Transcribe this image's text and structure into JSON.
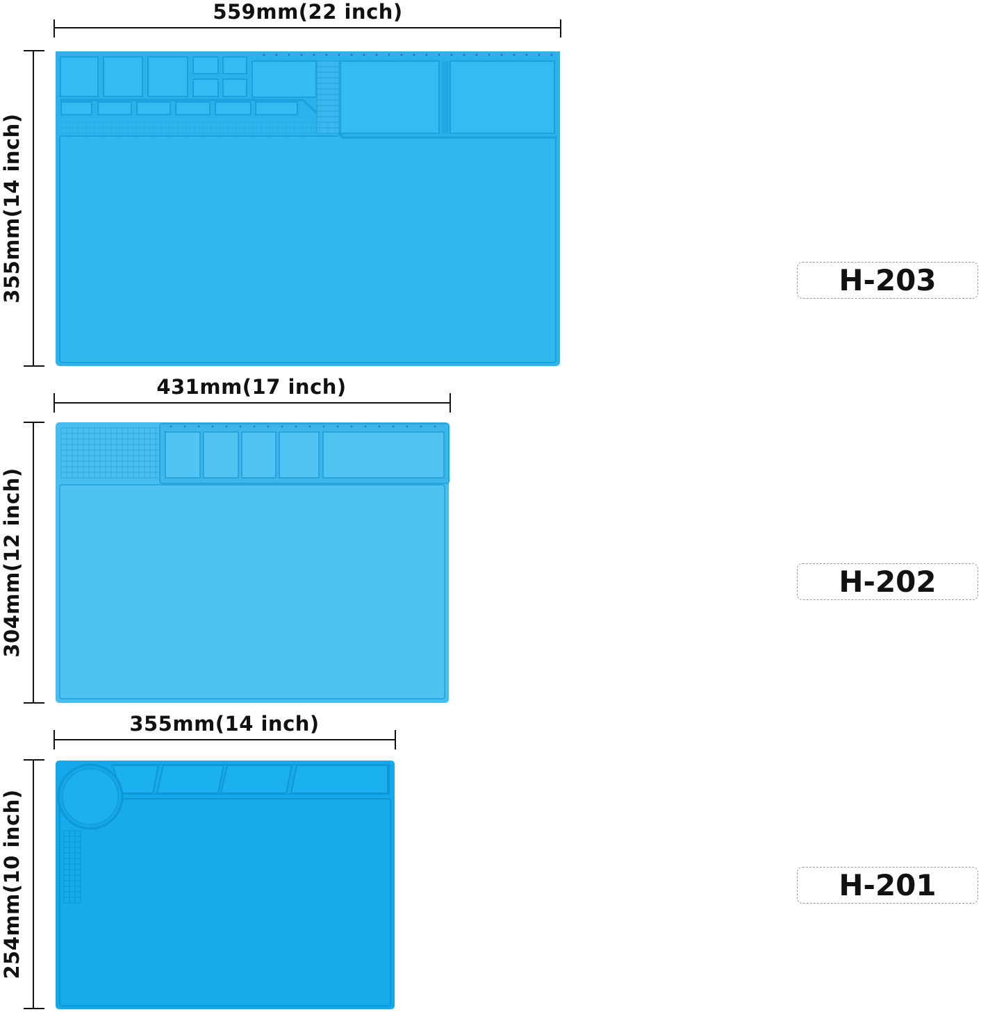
{
  "colors": {
    "mat_large": "#2fb6ee",
    "mat_medium": "#4fc2f0",
    "mat_small": "#16a9ea",
    "rim": "#1c9fdc",
    "dimension_line": "#111111"
  },
  "products": [
    {
      "model": "H-203",
      "width_label": "559mm(22 inch)",
      "height_label": "355mm(14 inch)"
    },
    {
      "model": "H-202",
      "width_label": "431mm(17 inch)",
      "height_label": "304mm(12 inch)"
    },
    {
      "model": "H-201",
      "width_label": "355mm(14 inch)",
      "height_label": "254mm(10 inch)"
    }
  ]
}
